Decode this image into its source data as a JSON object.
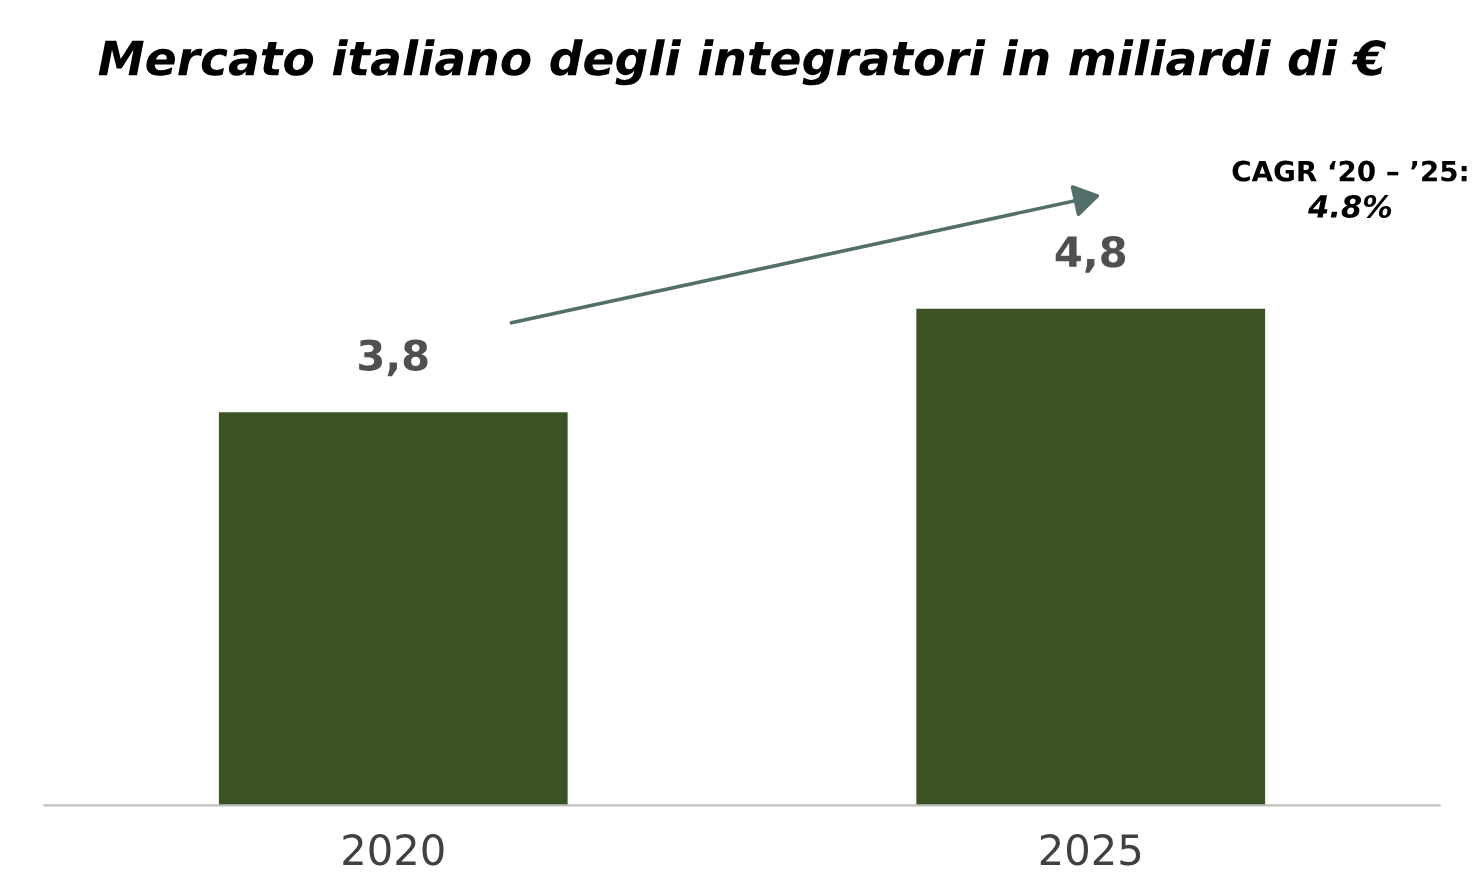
{
  "chart_data": {
    "type": "bar",
    "title": "Mercato italiano degli integratori in miliardi di €",
    "categories": [
      "2020",
      "2025"
    ],
    "values": [
      3.8,
      4.8
    ],
    "color": "#3b5323",
    "value_labels": [
      "3,8",
      "4,8"
    ],
    "tick_labels": "x",
    "grid": false,
    "annotations": [
      "CAGR ‘20 – ’25:",
      "4.8%"
    ]
  }
}
